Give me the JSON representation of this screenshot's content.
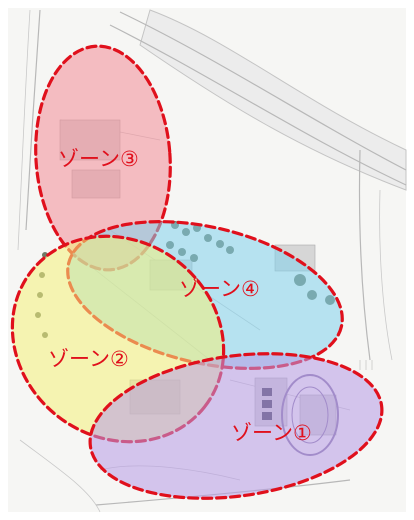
{
  "colors": {
    "outline": "#e0101c",
    "zone1_fill": "#b79be6",
    "zone2_fill": "#f4f07a",
    "zone3_fill": "#f28d97",
    "zone4_fill": "#82d2ec",
    "label_text": "#e0101c"
  },
  "zones": [
    {
      "id": "zone1",
      "label": "ゾーン①"
    },
    {
      "id": "zone2",
      "label": "ゾーン②"
    },
    {
      "id": "zone3",
      "label": "ゾーン③"
    },
    {
      "id": "zone4",
      "label": "ゾーン④"
    }
  ]
}
